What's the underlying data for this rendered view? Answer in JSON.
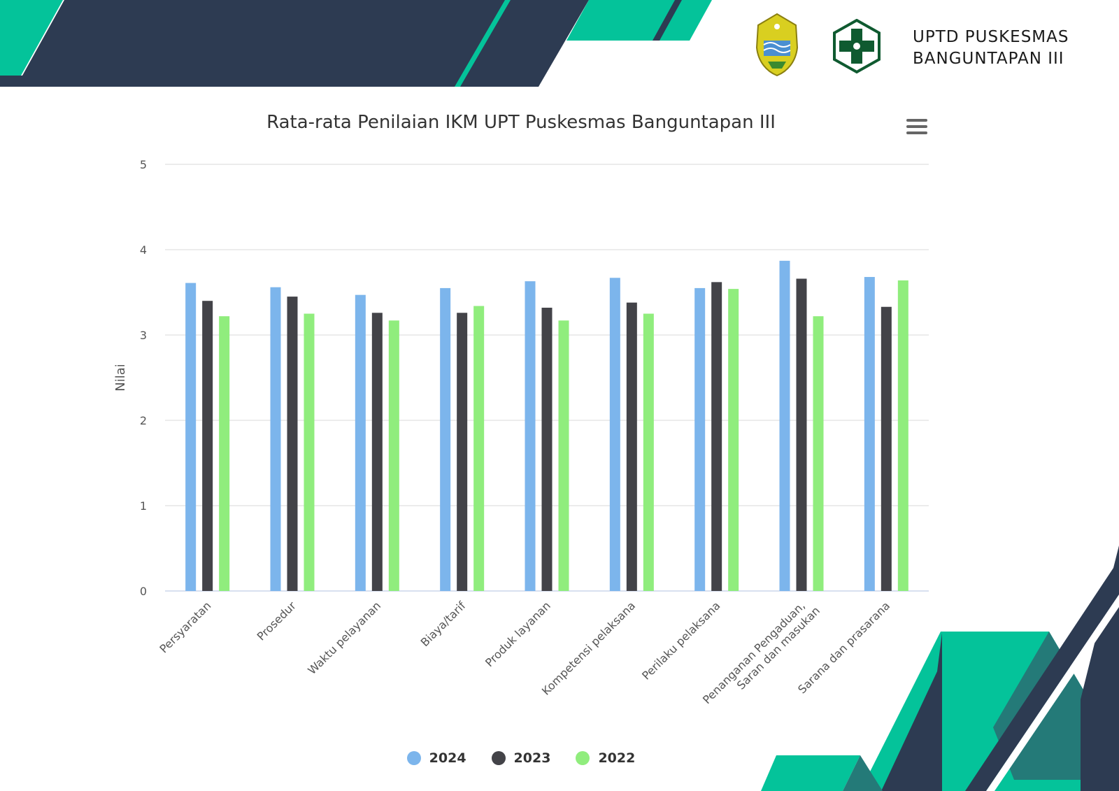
{
  "header": {
    "org_name_line1": "UPTD PUSKESMAS",
    "org_name_line2": "BANGUNTAPAN III",
    "logos": [
      "regional-emblem-icon",
      "puskesmas-cross-icon"
    ]
  },
  "colors": {
    "navy": "#2d3b52",
    "teal": "#04c39a",
    "dark_teal": "#247a78"
  },
  "chart_data": {
    "type": "bar",
    "title": "Rata-rata Penilaian IKM UPT Puskesmas Banguntapan III",
    "ylabel": "Nilai",
    "xlabel": "",
    "ylim": [
      0,
      5
    ],
    "yticks": [
      0,
      1,
      2,
      3,
      4,
      5
    ],
    "grid": true,
    "legend_position": "bottom-center",
    "categories": [
      "Persyaratan",
      "Prosedur",
      "Waktu pelayanan",
      "Biaya/tarif",
      "Produk layanan",
      "Kompetensi pelaksana",
      "Perilaku pelaksana",
      "Penanganan Pengaduan, Saran dan masukan",
      "Sarana dan prasarana"
    ],
    "series": [
      {
        "name": "2024",
        "color": "#7cb5ec",
        "values": [
          3.61,
          3.56,
          3.47,
          3.55,
          3.63,
          3.67,
          3.55,
          3.87,
          3.68
        ]
      },
      {
        "name": "2023",
        "color": "#434348",
        "values": [
          3.4,
          3.45,
          3.26,
          3.26,
          3.32,
          3.38,
          3.62,
          3.66,
          3.33
        ]
      },
      {
        "name": "2022",
        "color": "#90ed7d",
        "values": [
          3.22,
          3.25,
          3.17,
          3.34,
          3.17,
          3.25,
          3.54,
          3.22,
          3.64
        ]
      }
    ]
  }
}
